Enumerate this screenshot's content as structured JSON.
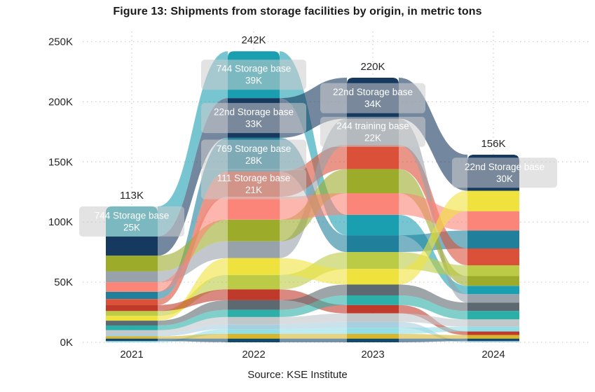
{
  "figure": {
    "title": "Figure 13: Shipments from storage facilities by origin, in metric tons",
    "source": "Source: KSE Institute"
  },
  "chart_data": {
    "type": "area",
    "style": "ribbon-stream (stacked columns with crossing ribbons, sorted largest-on-top)",
    "title": "Figure 13: Shipments from storage facilities by origin, in metric tons",
    "xlabel": "",
    "ylabel": "metric tons (thousands)",
    "categories": [
      "2021",
      "2022",
      "2023",
      "2024"
    ],
    "totals_labels": [
      "113K",
      "242K",
      "220K",
      "156K"
    ],
    "totals_values": [
      113,
      242,
      220,
      156
    ],
    "ylim": [
      0,
      250
    ],
    "grid": "dotted horizontal at 50K steps, dotted vertical at each year",
    "legend": "none (labels shown inline on chart)",
    "y_ticks": {
      "values": [
        0,
        50,
        100,
        150,
        200,
        250
      ],
      "labels": [
        "0K",
        "50K",
        "100K",
        "150K",
        "200K",
        "250K"
      ]
    },
    "series": [
      {
        "name": "744 Storage base",
        "color": "#1A9FB0",
        "values": [
          25,
          39,
          17,
          7
        ],
        "labeled": true
      },
      {
        "name": "22nd Storage base",
        "color": "#16395F",
        "values": [
          16,
          33,
          34,
          30
        ],
        "labeled": true
      },
      {
        "name": "769 Storage base",
        "color": "#20809C",
        "values": [
          6,
          28,
          14,
          15
        ],
        "labeled": true
      },
      {
        "name": "111 Storage base",
        "color": "#DA5038",
        "values": [
          5,
          21,
          20,
          14
        ],
        "labeled": true
      },
      {
        "name": "244 training base",
        "color": "#98A2AA",
        "values": [
          9,
          14,
          22,
          7
        ],
        "labeled": true
      },
      {
        "name": "series-olive",
        "color": "#9CAC2A",
        "values": [
          13,
          18,
          20,
          8
        ],
        "labeled": false
      },
      {
        "name": "series-yellow-green",
        "color": "#BCCB45",
        "values": [
          4,
          12,
          14,
          9
        ],
        "labeled": false
      },
      {
        "name": "series-salmon",
        "color": "#FB8578",
        "values": [
          8,
          19,
          18,
          16
        ],
        "labeled": false
      },
      {
        "name": "series-yellow",
        "color": "#EFE23E",
        "values": [
          4,
          14,
          13,
          17
        ],
        "labeled": false
      },
      {
        "name": "series-dark-red",
        "color": "#C03A2B",
        "values": [
          5,
          9,
          7,
          3
        ],
        "labeled": false
      },
      {
        "name": "series-light-blue",
        "color": "#A8CFE0",
        "values": [
          2,
          4,
          5,
          1
        ],
        "labeled": false
      },
      {
        "name": "series-pale-cyan",
        "color": "#93DEE4",
        "values": [
          1,
          4,
          5,
          4
        ],
        "labeled": false
      },
      {
        "name": "series-dark-gray",
        "color": "#5D6970",
        "values": [
          4,
          8,
          9,
          7
        ],
        "labeled": false
      },
      {
        "name": "series-teal-green",
        "color": "#2BAFA8",
        "values": [
          4,
          6,
          8,
          7
        ],
        "labeled": false
      },
      {
        "name": "series-light-gray",
        "color": "#C2C7CA",
        "values": [
          3,
          6,
          7,
          6
        ],
        "labeled": false
      },
      {
        "name": "series-gold",
        "color": "#D8B62C",
        "values": [
          2,
          4,
          4,
          3
        ],
        "labeled": false
      },
      {
        "name": "series-navy-2",
        "color": "#14496E",
        "values": [
          2,
          3,
          3,
          2
        ],
        "labeled": false
      }
    ],
    "segment_labels": [
      {
        "year": "2021",
        "series": "744 Storage base",
        "line1": "744 Storage base",
        "line2": "25K",
        "dx": 0
      },
      {
        "year": "2022",
        "series": "744 Storage base",
        "line1": "744 Storage base",
        "line2": "39K",
        "dx": 0
      },
      {
        "year": "2022",
        "series": "22nd Storage base",
        "line1": "22nd Storage base",
        "line2": "33K",
        "dx": 0
      },
      {
        "year": "2022",
        "series": "769 Storage base",
        "line1": "769 Storage base",
        "line2": "28K",
        "dx": 0
      },
      {
        "year": "2022",
        "series": "111 Storage base",
        "line1": "111 Storage base",
        "line2": "21K",
        "dx": 0
      },
      {
        "year": "2023",
        "series": "22nd Storage base",
        "line1": "22nd Storage base",
        "line2": "34K",
        "dx": 0
      },
      {
        "year": "2023",
        "series": "244 training base",
        "line1": "244 training base",
        "line2": "22K",
        "dx": 0
      },
      {
        "year": "2024",
        "series": "22nd Storage base",
        "line1": "22nd Storage base",
        "line2": "30K",
        "dx": 16
      }
    ]
  },
  "colors": {
    "grid": "#CFCFCF",
    "axis_text": "#252525",
    "label_box": "#CCCCCC",
    "label_text": "#FFFFFF",
    "background": "#FFFFFF"
  }
}
